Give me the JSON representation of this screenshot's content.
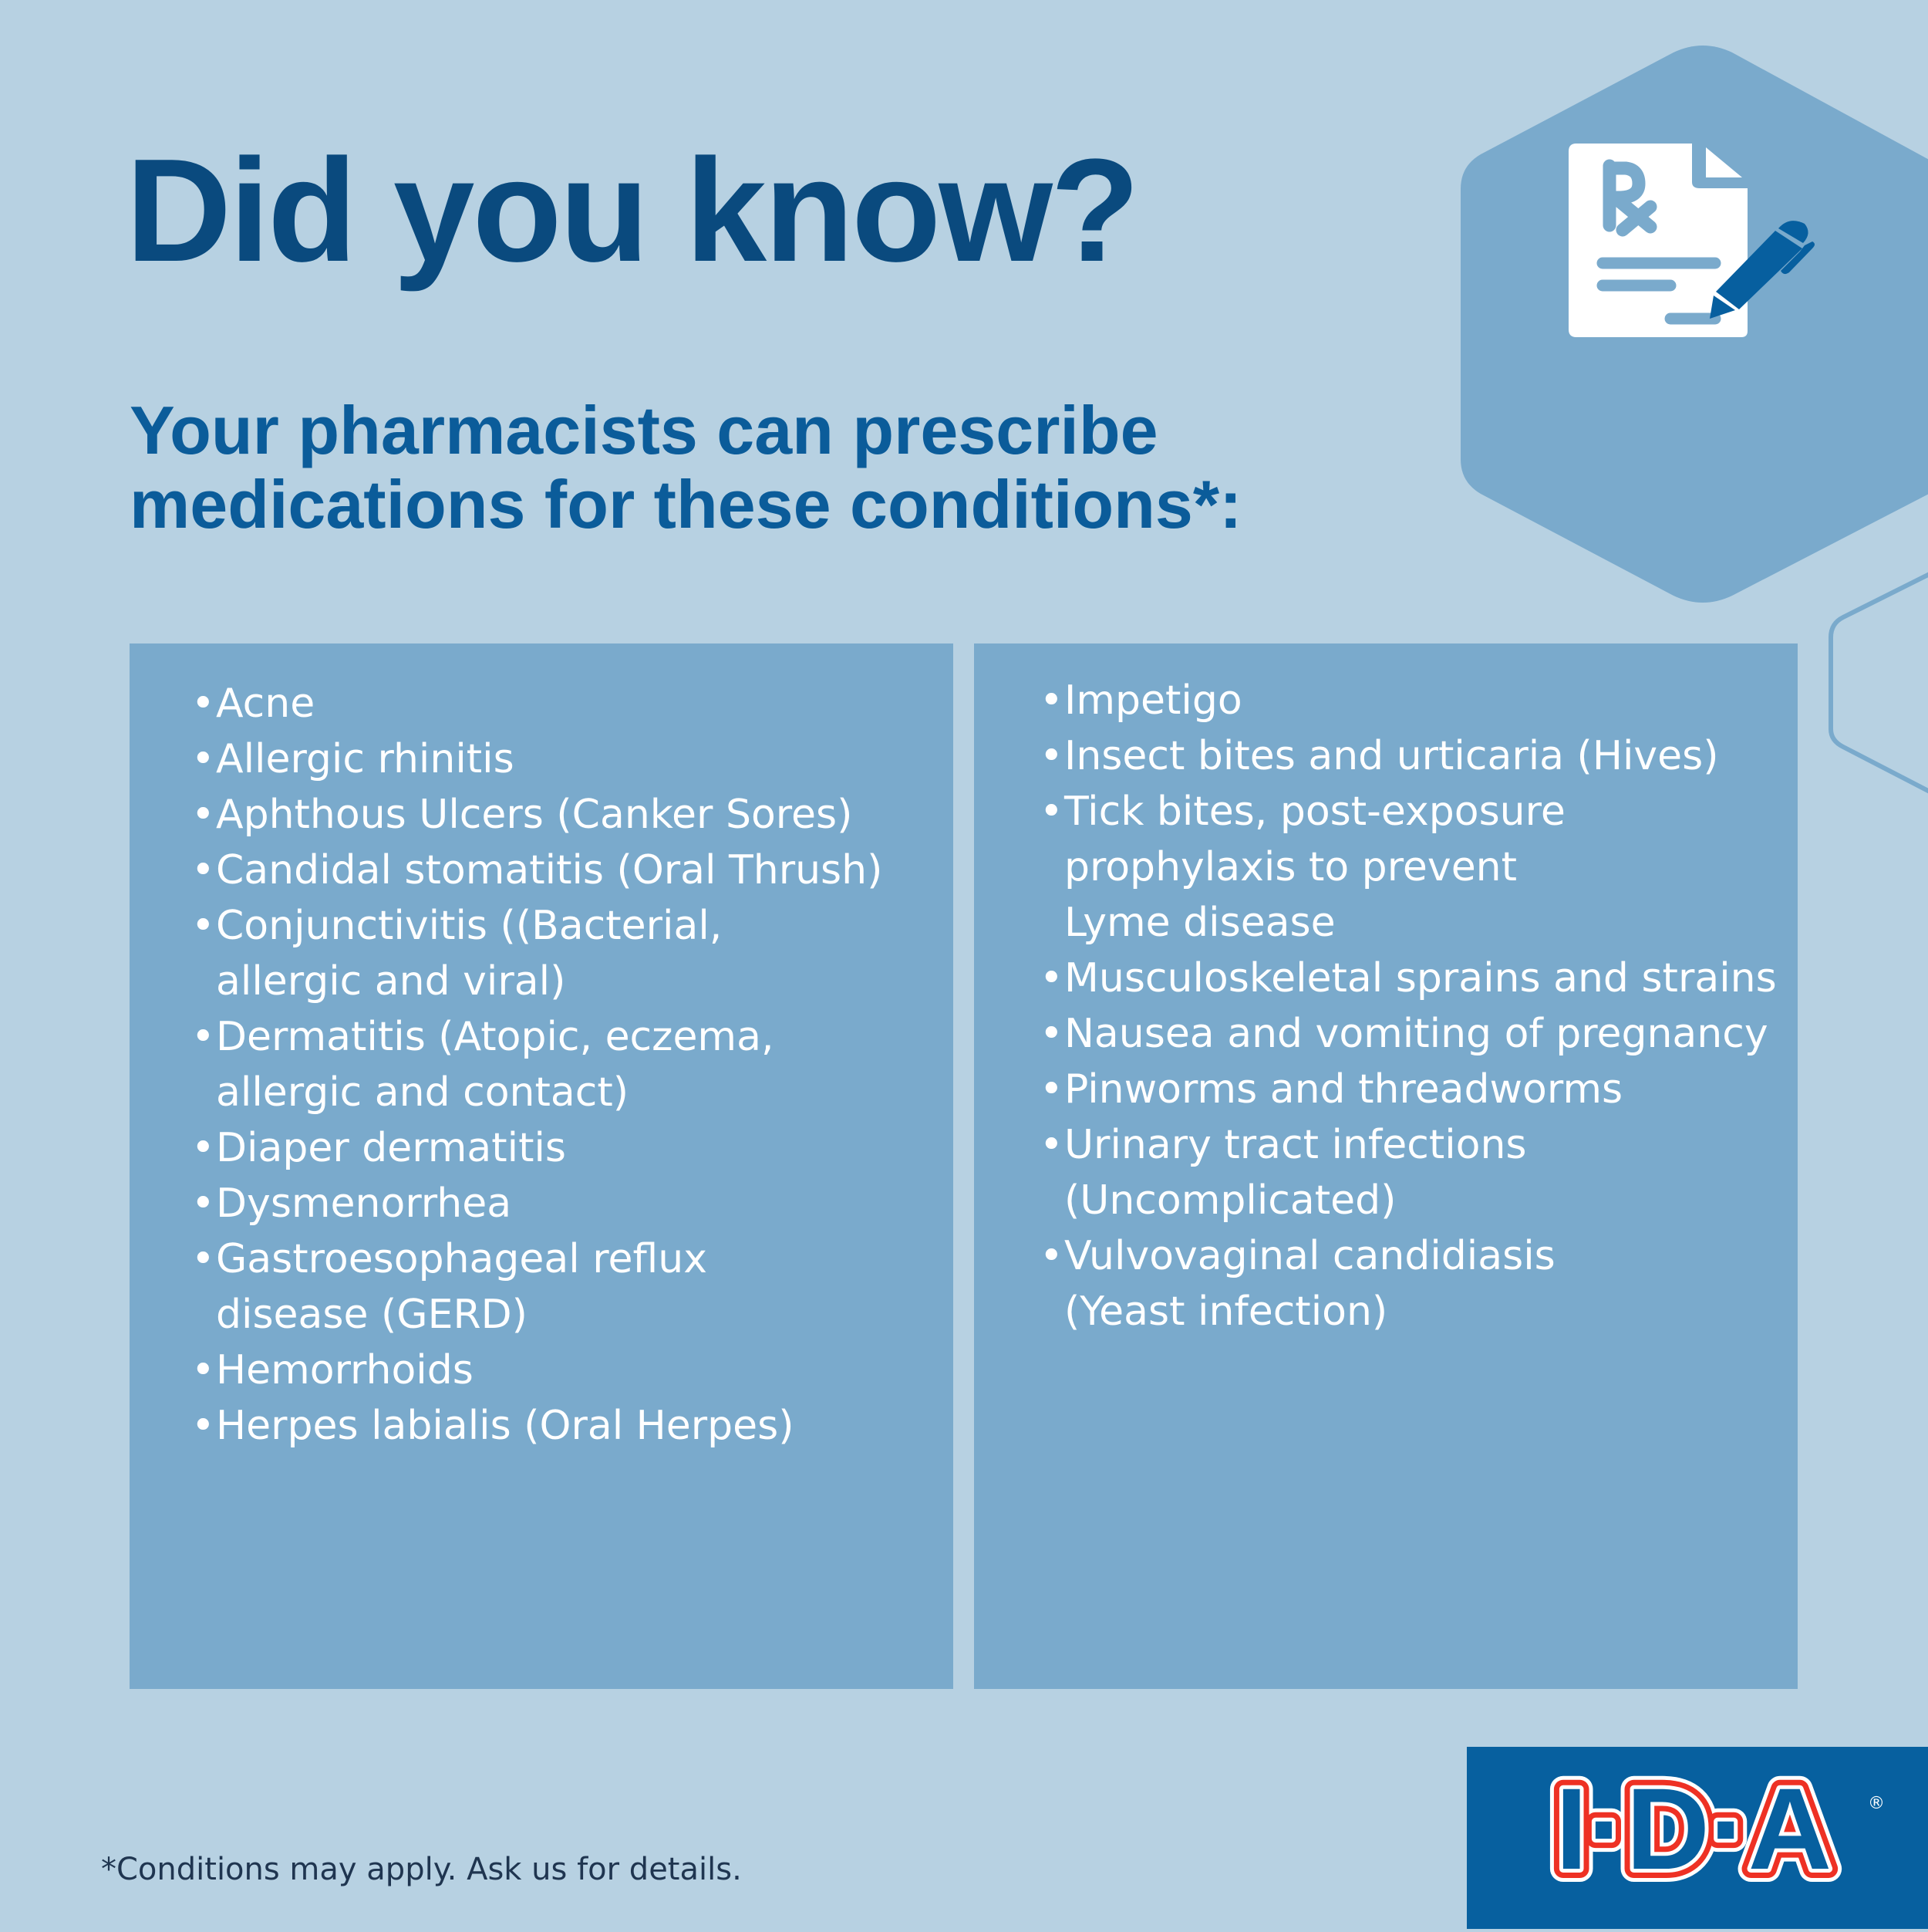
{
  "header": {
    "title": "Did you know?",
    "subtitle_line1": "Your pharmacists can prescribe",
    "subtitle_line2": "medications for these conditions*:"
  },
  "conditions_left": [
    "Acne",
    "Allergic rhinitis",
    "Aphthous Ulcers (Canker Sores)",
    "Candidal stomatitis (Oral Thrush)",
    "Conjunctivitis ((Bacterial, allergic and viral)",
    "Dermatitis (Atopic, eczema, allergic and contact)",
    "Diaper dermatitis",
    "Dysmenorrhea",
    "Gastroesophageal reflux disease (GERD)",
    "Hemorrhoids",
    "Herpes labialis (Oral Herpes)"
  ],
  "conditions_right": [
    "Impetigo",
    "Insect bites and urticaria (Hives)",
    "Tick bites, post-exposure prophylaxis to prevent Lyme disease",
    "Musculoskeletal sprains and strains",
    "Nausea and vomiting of pregnancy",
    "Pinworms and threadworms",
    "Urinary tract infections (Uncomplicated)",
    "Vulvovaginal candidiasis (Yeast infection)"
  ],
  "footnote": "*Conditions may apply. Ask us for details.",
  "logo": {
    "text": "I·D·A",
    "registered": "®"
  },
  "icons": {
    "hero": "prescription-document-pen-icon"
  },
  "colors": {
    "background": "#b7d1e2",
    "panel": "#7aaacc",
    "title": "#0a4a7e",
    "subtitle": "#0b5c9a",
    "logo_bg": "#07609f",
    "logo_red": "#ee3124"
  }
}
